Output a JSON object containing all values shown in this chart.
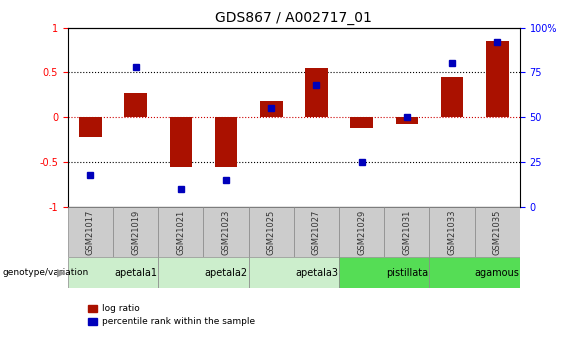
{
  "title": "GDS867 / A002717_01",
  "samples": [
    "GSM21017",
    "GSM21019",
    "GSM21021",
    "GSM21023",
    "GSM21025",
    "GSM21027",
    "GSM21029",
    "GSM21031",
    "GSM21033",
    "GSM21035"
  ],
  "log_ratio": [
    -0.22,
    0.27,
    -0.55,
    -0.55,
    0.18,
    0.55,
    -0.12,
    -0.07,
    0.45,
    0.85
  ],
  "percentile_rank": [
    18,
    78,
    10,
    15,
    55,
    68,
    25,
    50,
    80,
    92
  ],
  "groups": [
    {
      "label": "apetala1",
      "start": 0,
      "end": 2,
      "color": "#cceecc"
    },
    {
      "label": "apetala2",
      "start": 2,
      "end": 4,
      "color": "#cceecc"
    },
    {
      "label": "apetala3",
      "start": 4,
      "end": 6,
      "color": "#cceecc"
    },
    {
      "label": "pistillata",
      "start": 6,
      "end": 8,
      "color": "#55dd55"
    },
    {
      "label": "agamous",
      "start": 8,
      "end": 10,
      "color": "#55dd55"
    }
  ],
  "bar_color": "#aa1100",
  "dot_color": "#0000bb",
  "ylim_left": [
    -1,
    1
  ],
  "ylim_right": [
    0,
    100
  ],
  "yticks_left": [
    -1,
    -0.5,
    0,
    0.5,
    1
  ],
  "ytick_labels_left": [
    "-1",
    "-0.5",
    "0",
    "0.5",
    "1"
  ],
  "yticks_right": [
    0,
    25,
    50,
    75,
    100
  ],
  "ytick_labels_right": [
    "0",
    "25",
    "50",
    "75",
    "100%"
  ],
  "hline_dotted": [
    -0.5,
    0.5
  ],
  "hline_zero_color": "#cc0000",
  "legend_items": [
    {
      "label": "log ratio",
      "color": "#aa1100"
    },
    {
      "label": "percentile rank within the sample",
      "color": "#0000bb"
    }
  ],
  "genotype_label": "genotype/variation",
  "title_fontsize": 10,
  "tick_fontsize": 7,
  "bar_width": 0.5,
  "sample_cell_color": "#cccccc",
  "cell_border_color": "#888888"
}
